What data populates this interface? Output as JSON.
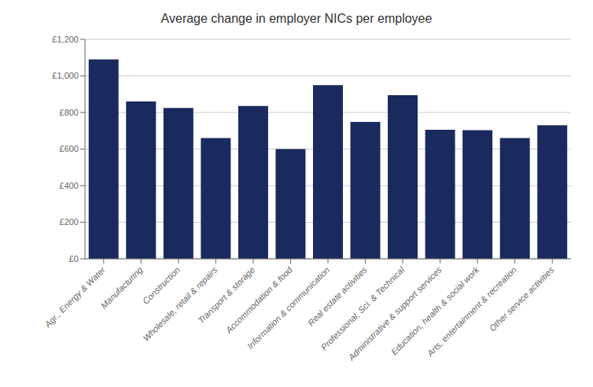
{
  "chart_data": {
    "type": "bar",
    "title": "Average change in employer NICs per employee",
    "categories": [
      "Agr., Energy & Water",
      "Manufacturing",
      "Construction",
      "Wholesale, retail & repairs",
      "Transport & storage",
      "Accommodation & food",
      "Information & communication",
      "Real estate activities",
      "Professional, Sci. & Technical",
      "Administrative & support services",
      "Education, health & social work",
      "Arts, entertainment & recreation",
      "Other service activities"
    ],
    "values": [
      1090,
      860,
      825,
      660,
      835,
      600,
      950,
      748,
      895,
      705,
      703,
      660,
      730
    ],
    "color": "#1a2a5e",
    "ylim": [
      0,
      1200
    ],
    "yticks": [
      {
        "value": 0,
        "label": "£0"
      },
      {
        "value": 200,
        "label": "£200"
      },
      {
        "value": 400,
        "label": "£400"
      },
      {
        "value": 600,
        "label": "£600"
      },
      {
        "value": 800,
        "label": "£800"
      },
      {
        "value": 1000,
        "label": "£1,000"
      },
      {
        "value": 1200,
        "label": "£1,200"
      }
    ],
    "grid": true
  }
}
